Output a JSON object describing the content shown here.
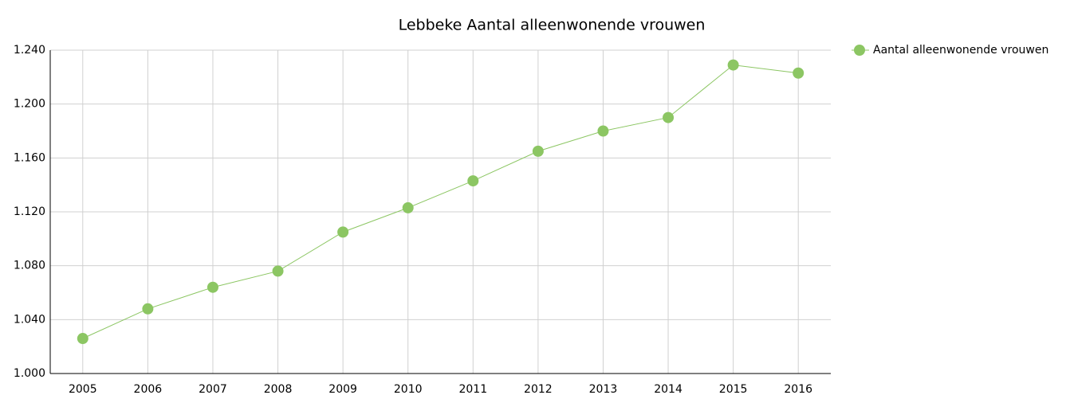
{
  "chart_data": {
    "type": "line",
    "title": "Lebbeke  Aantal alleenwonende vrouwen",
    "categories": [
      "2005",
      "2006",
      "2007",
      "2008",
      "2009",
      "2010",
      "2011",
      "2012",
      "2013",
      "2014",
      "2015",
      "2016"
    ],
    "series": [
      {
        "name": "Aantal alleenwonende vrouwen",
        "color": "#8cc663",
        "values": [
          1026,
          1048,
          1064,
          1076,
          1105,
          1123,
          1143,
          1165,
          1180,
          1190,
          1229,
          1223
        ]
      }
    ],
    "ylim": [
      1000,
      1240
    ],
    "yticks": [
      {
        "value": 1000,
        "label": "1.000"
      },
      {
        "value": 1040,
        "label": "1.040"
      },
      {
        "value": 1080,
        "label": "1.080"
      },
      {
        "value": 1120,
        "label": "1.120"
      },
      {
        "value": 1160,
        "label": "1.160"
      },
      {
        "value": 1200,
        "label": "1.200"
      },
      {
        "value": 1240,
        "label": "1.240"
      }
    ],
    "grid": true,
    "legend": "top-right"
  }
}
